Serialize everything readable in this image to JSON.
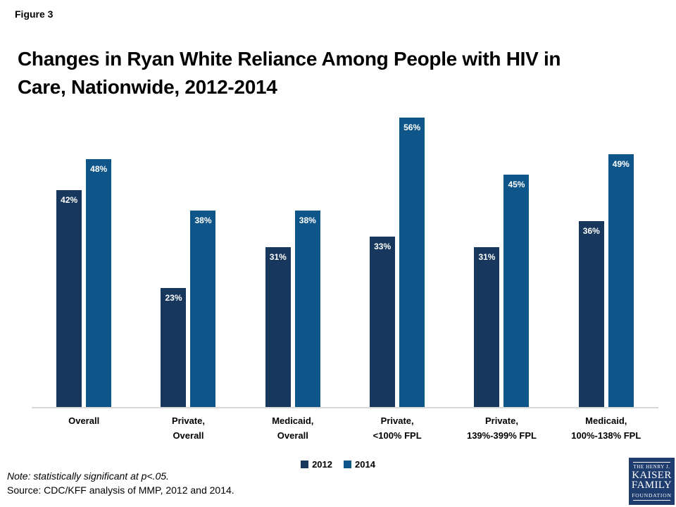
{
  "figure_label": "Figure 3",
  "title": {
    "line1": "Changes in Ryan White Reliance Among People with HIV in",
    "line2": "Care, Nationwide, 2012-2014"
  },
  "chart_data": {
    "type": "bar",
    "title": "Changes in Ryan White Reliance Among People with HIV in Care, Nationwide, 2012-2014",
    "categories": [
      "Overall",
      "Private,\nOverall",
      "Medicaid,\nOverall",
      "Private,\n<100% FPL",
      "Private,\n139%-399% FPL",
      "Medicaid,\n100%-138% FPL"
    ],
    "series": [
      {
        "name": "2012",
        "color": "#17375C",
        "values": [
          42,
          23,
          31,
          33,
          31,
          36
        ]
      },
      {
        "name": "2014",
        "color": "#0E558A",
        "values": [
          48,
          38,
          38,
          56,
          45,
          49
        ]
      }
    ],
    "value_suffix": "%",
    "xlabel": "",
    "ylabel": "",
    "ylim": [
      0,
      60
    ],
    "grid": false,
    "legend_position": "bottom",
    "bar_label_color": "#FFFFFF",
    "axis_line_color": "#D9D9D9"
  },
  "notes": {
    "note": "Note: statistically significant at p<.05.",
    "source": "Source: CDC/KFF analysis of MMP, 2012 and 2014."
  },
  "logo": {
    "line1": "THE HENRY J.",
    "line2": "KAISER",
    "line3": "FAMILY",
    "line4": "FOUNDATION",
    "bg_color": "#1E3C6E"
  }
}
